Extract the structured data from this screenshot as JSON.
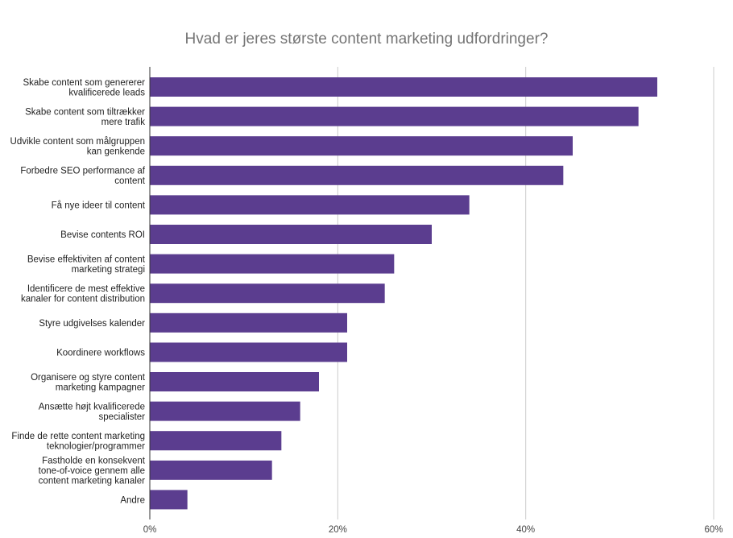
{
  "chart_data": {
    "type": "bar",
    "orientation": "horizontal",
    "title": "Hvad er jeres største content marketing udfordringer?",
    "xlabel": "",
    "ylabel": "",
    "xlim": [
      0,
      60
    ],
    "x_ticks": [
      0,
      20,
      40,
      60
    ],
    "x_tick_labels": [
      "0%",
      "20%",
      "40%",
      "60%"
    ],
    "grid": true,
    "legend": "none",
    "bar_color": "#5b3d8f",
    "categories": [
      [
        "Skabe content som genererer",
        "kvalificerede leads"
      ],
      [
        "Skabe content som tiltrækker",
        "mere trafik"
      ],
      [
        "Udvikle content som målgruppen",
        "kan genkende"
      ],
      [
        "Forbedre SEO performance af",
        "content"
      ],
      [
        "Få nye ideer til content"
      ],
      [
        "Bevise contents ROI"
      ],
      [
        "Bevise effektiviten af content",
        "marketing strategi"
      ],
      [
        "Identificere de mest effektive",
        "kanaler for content distribution"
      ],
      [
        "Styre udgivelses kalender"
      ],
      [
        "Koordinere workflows"
      ],
      [
        "Organisere og styre content",
        "marketing kampagner"
      ],
      [
        "Ansætte højt kvalificerede",
        "specialister"
      ],
      [
        "Finde de rette content marketing",
        "teknologier/programmer"
      ],
      [
        "Fastholde en konsekvent",
        "tone-of-voice gennem alle",
        "content marketing kanaler"
      ],
      [
        "Andre"
      ]
    ],
    "values": [
      54,
      52,
      45,
      44,
      34,
      30,
      26,
      25,
      21,
      21,
      18,
      16,
      14,
      13,
      4
    ]
  }
}
